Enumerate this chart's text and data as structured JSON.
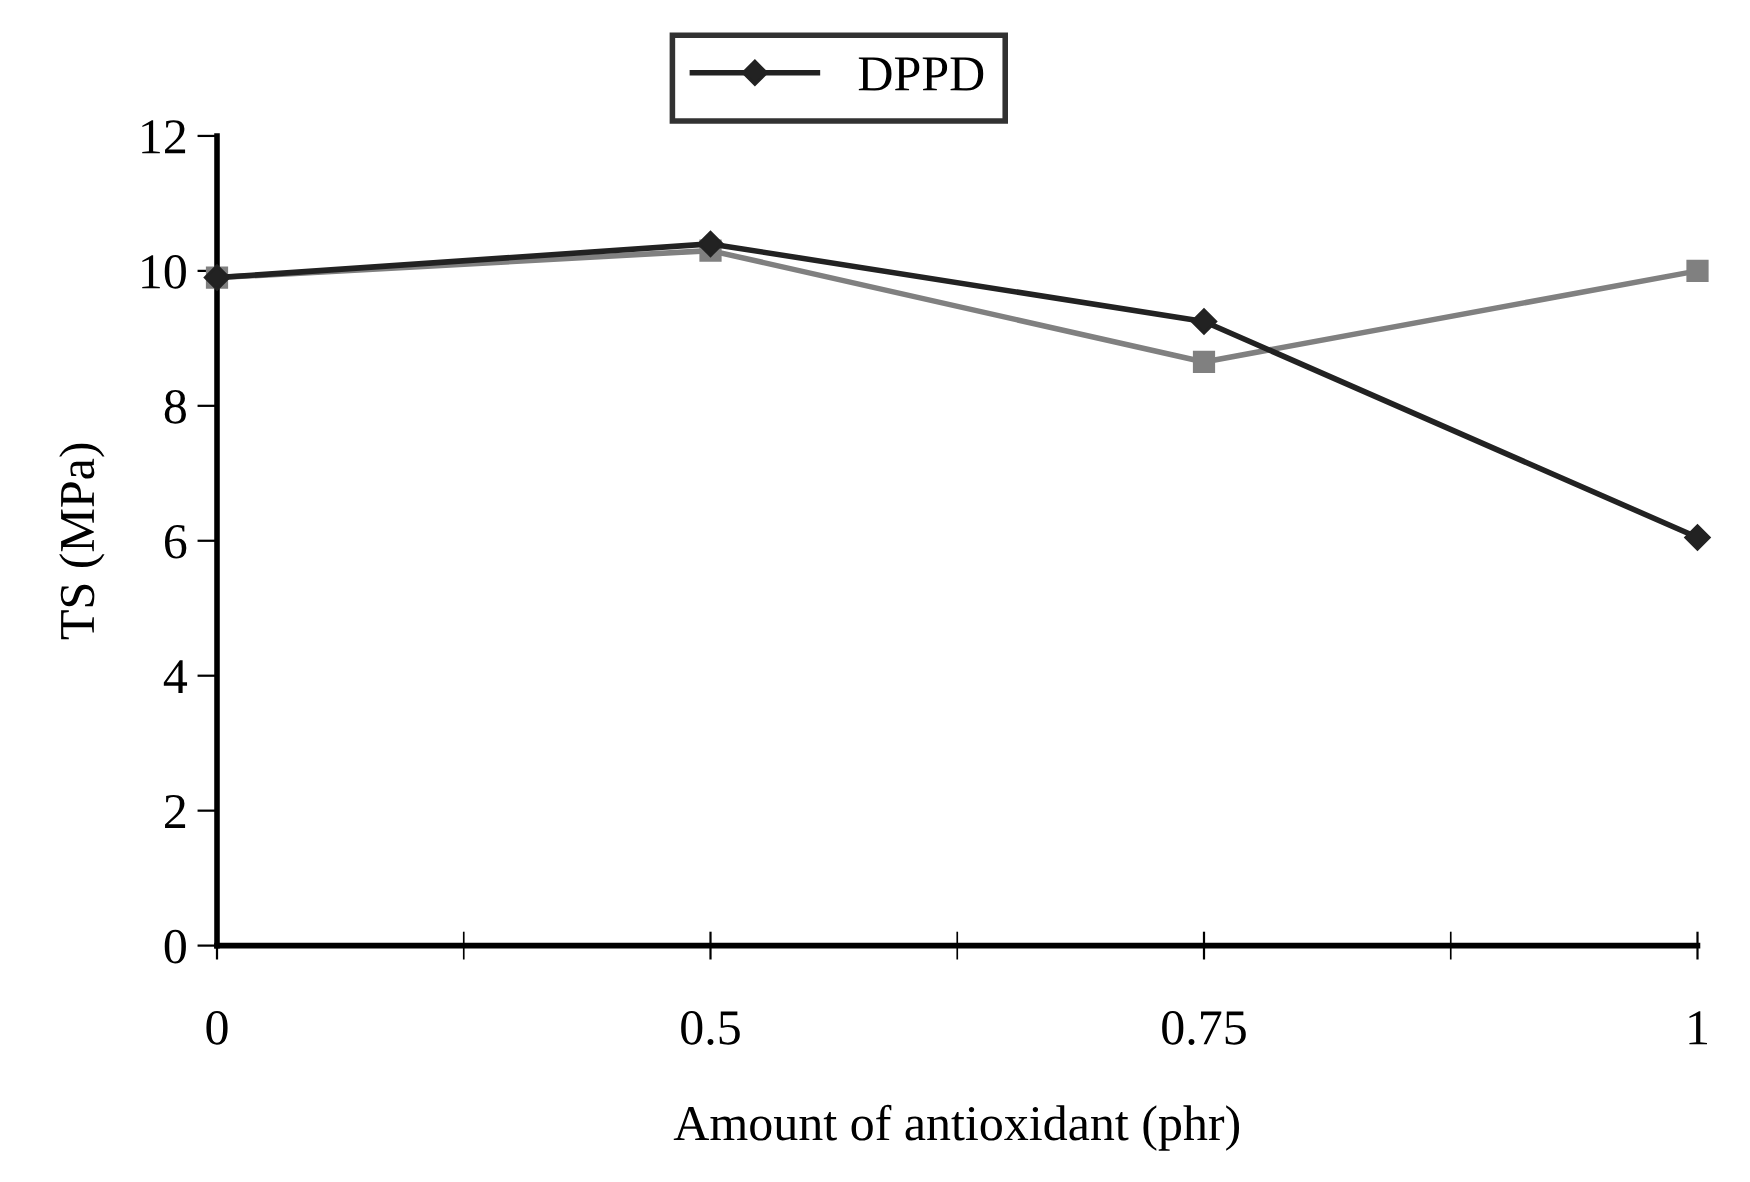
{
  "chart_data": {
    "type": "line",
    "xlabel": "Amount of antioxidant (phr)",
    "ylabel": "TS (MPa)",
    "categories": [
      "0",
      "0.5",
      "0.75",
      "1"
    ],
    "series": [
      {
        "name": "DPPD",
        "color": "#222222",
        "marker": "diamond",
        "values": [
          9.9,
          10.4,
          9.25,
          6.05
        ]
      },
      {
        "color": "#808080",
        "marker": "square",
        "values": [
          9.9,
          10.3,
          8.65,
          10.0
        ]
      }
    ],
    "ylim": [
      0,
      12
    ],
    "yticks": [
      0,
      2,
      4,
      6,
      8,
      10,
      12
    ],
    "grid": false,
    "legend": "top",
    "line_style": "solid"
  }
}
